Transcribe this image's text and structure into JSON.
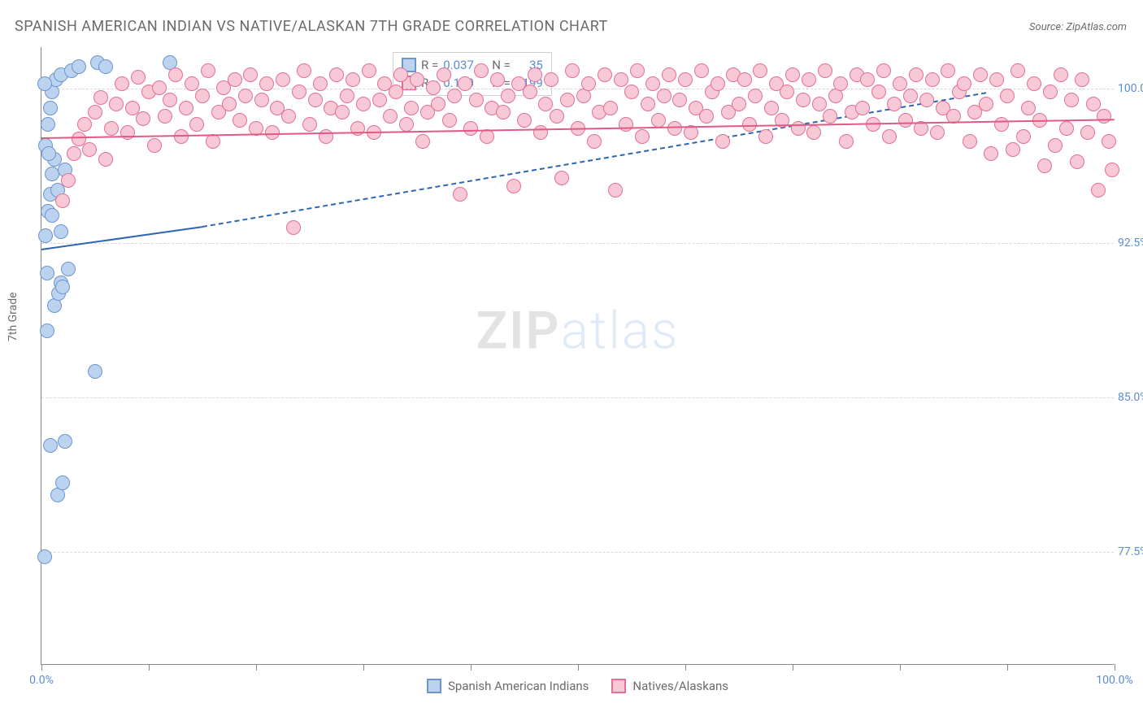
{
  "title": "SPANISH AMERICAN INDIAN VS NATIVE/ALASKAN 7TH GRADE CORRELATION CHART",
  "source": "Source: ZipAtlas.com",
  "ylabel": "7th Grade",
  "watermark_zip": "ZIP",
  "watermark_atlas": "atlas",
  "chart": {
    "type": "scatter",
    "xlim": [
      0,
      100
    ],
    "ylim": [
      72,
      102
    ],
    "background_color": "#ffffff",
    "grid_color": "#d8d8d8",
    "axis_color": "#888888",
    "marker_radius": 9,
    "yticks": [
      {
        "v": 77.5,
        "label": "77.5%"
      },
      {
        "v": 85.0,
        "label": "85.0%"
      },
      {
        "v": 92.5,
        "label": "92.5%"
      },
      {
        "v": 100.0,
        "label": "100.0%"
      }
    ],
    "xticks": [
      0,
      10,
      20,
      30,
      40,
      50,
      60,
      70,
      80,
      90,
      100
    ],
    "xtick_labels": {
      "0": "0.0%",
      "100": "100.0%"
    },
    "series": [
      {
        "name": "Spanish American Indians",
        "fill": "#bcd3ef",
        "stroke": "#6b95cf",
        "trend_color": "#2f66b3",
        "R": "0.037",
        "N": "35",
        "trend": {
          "x1": 0,
          "y1": 92.2,
          "x2_solid": 15,
          "y2_solid": 93.3,
          "x2": 88,
          "y2": 99.8
        },
        "points": [
          [
            0.3,
            77.2
          ],
          [
            1.5,
            80.2
          ],
          [
            2.0,
            80.8
          ],
          [
            0.8,
            82.6
          ],
          [
            2.2,
            82.8
          ],
          [
            5.0,
            86.2
          ],
          [
            0.5,
            88.2
          ],
          [
            1.2,
            89.4
          ],
          [
            1.6,
            90.0
          ],
          [
            1.8,
            90.5
          ],
          [
            2.0,
            90.3
          ],
          [
            2.5,
            91.2
          ],
          [
            0.4,
            92.8
          ],
          [
            0.6,
            94.0
          ],
          [
            0.8,
            94.8
          ],
          [
            1.0,
            95.8
          ],
          [
            1.2,
            96.5
          ],
          [
            0.4,
            97.2
          ],
          [
            0.6,
            98.2
          ],
          [
            0.8,
            99.0
          ],
          [
            1.0,
            99.8
          ],
          [
            1.4,
            100.4
          ],
          [
            1.8,
            100.6
          ],
          [
            2.8,
            100.8
          ],
          [
            0.3,
            100.2
          ],
          [
            3.5,
            101.0
          ],
          [
            5.2,
            101.2
          ],
          [
            6.0,
            101.0
          ],
          [
            12.0,
            101.2
          ],
          [
            1.0,
            93.8
          ],
          [
            1.5,
            95.0
          ],
          [
            1.8,
            93.0
          ],
          [
            2.2,
            96.0
          ],
          [
            0.5,
            91.0
          ],
          [
            0.7,
            96.8
          ]
        ]
      },
      {
        "name": "Natives/Alaskans",
        "fill": "#f7c8d5",
        "stroke": "#e36f94",
        "trend_color": "#e05a84",
        "R": "0.140",
        "N": "199",
        "trend": {
          "x1": 0,
          "y1": 97.6,
          "x2_solid": 100,
          "y2_solid": 98.5,
          "x2": 100,
          "y2": 98.5
        },
        "points": [
          [
            2.0,
            94.5
          ],
          [
            2.5,
            95.5
          ],
          [
            3.0,
            96.8
          ],
          [
            3.5,
            97.5
          ],
          [
            4.0,
            98.2
          ],
          [
            4.5,
            97.0
          ],
          [
            5.0,
            98.8
          ],
          [
            5.5,
            99.5
          ],
          [
            6.0,
            96.5
          ],
          [
            6.5,
            98.0
          ],
          [
            7.0,
            99.2
          ],
          [
            7.5,
            100.2
          ],
          [
            8.0,
            97.8
          ],
          [
            8.5,
            99.0
          ],
          [
            9.0,
            100.5
          ],
          [
            9.5,
            98.5
          ],
          [
            10.0,
            99.8
          ],
          [
            10.5,
            97.2
          ],
          [
            11.0,
            100.0
          ],
          [
            11.5,
            98.6
          ],
          [
            12.0,
            99.4
          ],
          [
            12.5,
            100.6
          ],
          [
            13.0,
            97.6
          ],
          [
            13.5,
            99.0
          ],
          [
            14.0,
            100.2
          ],
          [
            14.5,
            98.2
          ],
          [
            15.0,
            99.6
          ],
          [
            15.5,
            100.8
          ],
          [
            16.0,
            97.4
          ],
          [
            16.5,
            98.8
          ],
          [
            17.0,
            100.0
          ],
          [
            17.5,
            99.2
          ],
          [
            18.0,
            100.4
          ],
          [
            18.5,
            98.4
          ],
          [
            19.0,
            99.6
          ],
          [
            19.5,
            100.6
          ],
          [
            20.0,
            98.0
          ],
          [
            20.5,
            99.4
          ],
          [
            21.0,
            100.2
          ],
          [
            21.5,
            97.8
          ],
          [
            22.0,
            99.0
          ],
          [
            22.5,
            100.4
          ],
          [
            23.0,
            98.6
          ],
          [
            23.5,
            93.2
          ],
          [
            24.0,
            99.8
          ],
          [
            24.5,
            100.8
          ],
          [
            25.0,
            98.2
          ],
          [
            25.5,
            99.4
          ],
          [
            26.0,
            100.2
          ],
          [
            26.5,
            97.6
          ],
          [
            27.0,
            99.0
          ],
          [
            27.5,
            100.6
          ],
          [
            28.0,
            98.8
          ],
          [
            28.5,
            99.6
          ],
          [
            29.0,
            100.4
          ],
          [
            29.5,
            98.0
          ],
          [
            30.0,
            99.2
          ],
          [
            30.5,
            100.8
          ],
          [
            31.0,
            97.8
          ],
          [
            31.5,
            99.4
          ],
          [
            32.0,
            100.2
          ],
          [
            32.5,
            98.6
          ],
          [
            33.0,
            99.8
          ],
          [
            33.5,
            100.6
          ],
          [
            34.0,
            98.2
          ],
          [
            34.5,
            99.0
          ],
          [
            35.0,
            100.4
          ],
          [
            35.5,
            97.4
          ],
          [
            36.0,
            98.8
          ],
          [
            36.5,
            100.0
          ],
          [
            37.0,
            99.2
          ],
          [
            37.5,
            100.6
          ],
          [
            38.0,
            98.4
          ],
          [
            38.5,
            99.6
          ],
          [
            39.0,
            94.8
          ],
          [
            39.5,
            100.2
          ],
          [
            40.0,
            98.0
          ],
          [
            40.5,
            99.4
          ],
          [
            41.0,
            100.8
          ],
          [
            41.5,
            97.6
          ],
          [
            42.0,
            99.0
          ],
          [
            42.5,
            100.4
          ],
          [
            43.0,
            98.8
          ],
          [
            43.5,
            99.6
          ],
          [
            44.0,
            95.2
          ],
          [
            44.5,
            100.2
          ],
          [
            45.0,
            98.4
          ],
          [
            45.5,
            99.8
          ],
          [
            46.0,
            100.6
          ],
          [
            46.5,
            97.8
          ],
          [
            47.0,
            99.2
          ],
          [
            47.5,
            100.4
          ],
          [
            48.0,
            98.6
          ],
          [
            48.5,
            95.6
          ],
          [
            49.0,
            99.4
          ],
          [
            49.5,
            100.8
          ],
          [
            50.0,
            98.0
          ],
          [
            50.5,
            99.6
          ],
          [
            51.0,
            100.2
          ],
          [
            51.5,
            97.4
          ],
          [
            52.0,
            98.8
          ],
          [
            52.5,
            100.6
          ],
          [
            53.0,
            99.0
          ],
          [
            53.5,
            95.0
          ],
          [
            54.0,
            100.4
          ],
          [
            54.5,
            98.2
          ],
          [
            55.0,
            99.8
          ],
          [
            55.5,
            100.8
          ],
          [
            56.0,
            97.6
          ],
          [
            56.5,
            99.2
          ],
          [
            57.0,
            100.2
          ],
          [
            57.5,
            98.4
          ],
          [
            58.0,
            99.6
          ],
          [
            58.5,
            100.6
          ],
          [
            59.0,
            98.0
          ],
          [
            59.5,
            99.4
          ],
          [
            60.0,
            100.4
          ],
          [
            60.5,
            97.8
          ],
          [
            61.0,
            99.0
          ],
          [
            61.5,
            100.8
          ],
          [
            62.0,
            98.6
          ],
          [
            62.5,
            99.8
          ],
          [
            63.0,
            100.2
          ],
          [
            63.5,
            97.4
          ],
          [
            64.0,
            98.8
          ],
          [
            64.5,
            100.6
          ],
          [
            65.0,
            99.2
          ],
          [
            65.5,
            100.4
          ],
          [
            66.0,
            98.2
          ],
          [
            66.5,
            99.6
          ],
          [
            67.0,
            100.8
          ],
          [
            67.5,
            97.6
          ],
          [
            68.0,
            99.0
          ],
          [
            68.5,
            100.2
          ],
          [
            69.0,
            98.4
          ],
          [
            69.5,
            99.8
          ],
          [
            70.0,
            100.6
          ],
          [
            70.5,
            98.0
          ],
          [
            71.0,
            99.4
          ],
          [
            71.5,
            100.4
          ],
          [
            72.0,
            97.8
          ],
          [
            72.5,
            99.2
          ],
          [
            73.0,
            100.8
          ],
          [
            73.5,
            98.6
          ],
          [
            74.0,
            99.6
          ],
          [
            74.5,
            100.2
          ],
          [
            75.0,
            97.4
          ],
          [
            75.5,
            98.8
          ],
          [
            76.0,
            100.6
          ],
          [
            76.5,
            99.0
          ],
          [
            77.0,
            100.4
          ],
          [
            77.5,
            98.2
          ],
          [
            78.0,
            99.8
          ],
          [
            78.5,
            100.8
          ],
          [
            79.0,
            97.6
          ],
          [
            79.5,
            99.2
          ],
          [
            80.0,
            100.2
          ],
          [
            80.5,
            98.4
          ],
          [
            81.0,
            99.6
          ],
          [
            81.5,
            100.6
          ],
          [
            82.0,
            98.0
          ],
          [
            82.5,
            99.4
          ],
          [
            83.0,
            100.4
          ],
          [
            83.5,
            97.8
          ],
          [
            84.0,
            99.0
          ],
          [
            84.5,
            100.8
          ],
          [
            85.0,
            98.6
          ],
          [
            85.5,
            99.8
          ],
          [
            86.0,
            100.2
          ],
          [
            86.5,
            97.4
          ],
          [
            87.0,
            98.8
          ],
          [
            87.5,
            100.6
          ],
          [
            88.0,
            99.2
          ],
          [
            88.5,
            96.8
          ],
          [
            89.0,
            100.4
          ],
          [
            89.5,
            98.2
          ],
          [
            90.0,
            99.6
          ],
          [
            90.5,
            97.0
          ],
          [
            91.0,
            100.8
          ],
          [
            91.5,
            97.6
          ],
          [
            92.0,
            99.0
          ],
          [
            92.5,
            100.2
          ],
          [
            93.0,
            98.4
          ],
          [
            93.5,
            96.2
          ],
          [
            94.0,
            99.8
          ],
          [
            94.5,
            97.2
          ],
          [
            95.0,
            100.6
          ],
          [
            95.5,
            98.0
          ],
          [
            96.0,
            99.4
          ],
          [
            96.5,
            96.4
          ],
          [
            97.0,
            100.4
          ],
          [
            97.5,
            97.8
          ],
          [
            98.0,
            99.2
          ],
          [
            98.5,
            95.0
          ],
          [
            99.0,
            98.6
          ],
          [
            99.5,
            97.4
          ],
          [
            99.8,
            96.0
          ]
        ]
      }
    ]
  }
}
